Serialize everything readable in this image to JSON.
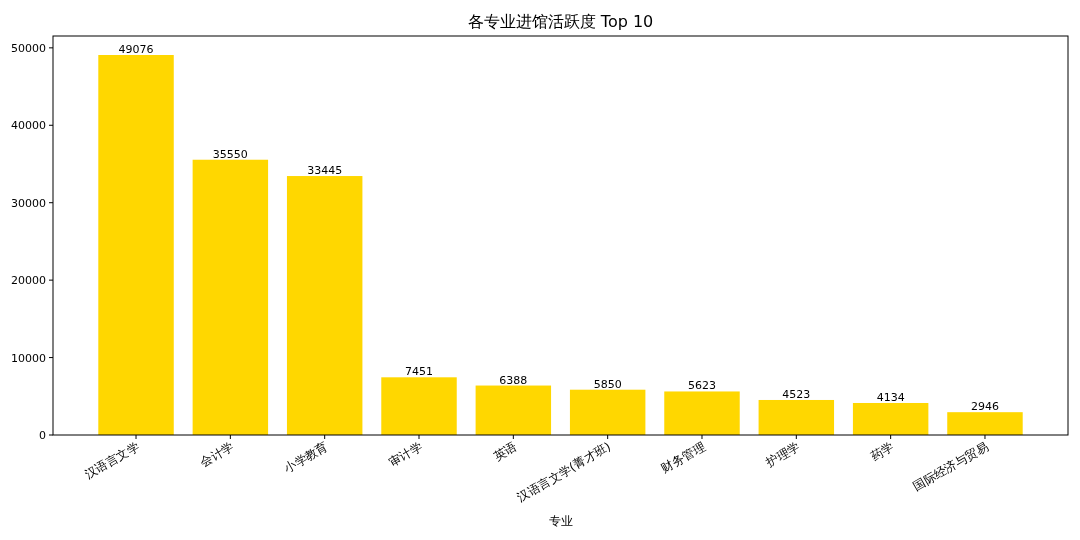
{
  "chart_data": {
    "type": "bar",
    "title": "各专业进馆活跃度 Top 10",
    "xlabel": "专业",
    "categories": [
      "汉语言文学",
      "会计学",
      "小学教育",
      "审计学",
      "英语",
      "汉语言文学(菁才班)",
      "财务管理",
      "护理学",
      "药学",
      "国际经济与贸易"
    ],
    "values": [
      49076,
      35550,
      33445,
      7451,
      6388,
      5850,
      5623,
      4523,
      4134,
      2946
    ],
    "color": "#ffd700",
    "ylim": [
      0,
      51530
    ],
    "yticks": [
      0,
      10000,
      20000,
      30000,
      40000,
      50000
    ],
    "data_labels": true,
    "grid": false
  }
}
